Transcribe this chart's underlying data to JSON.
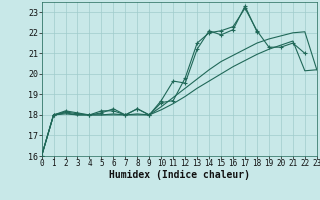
{
  "xlabel": "Humidex (Indice chaleur)",
  "background_color": "#c8e8e8",
  "grid_color": "#a0cccc",
  "line_color": "#206858",
  "xlim": [
    0,
    23
  ],
  "ylim": [
    16,
    23.5
  ],
  "yticks": [
    16,
    17,
    18,
    19,
    20,
    21,
    22,
    23
  ],
  "xticks": [
    0,
    1,
    2,
    3,
    4,
    5,
    6,
    7,
    8,
    9,
    10,
    11,
    12,
    13,
    14,
    15,
    16,
    17,
    18,
    19,
    20,
    21,
    22,
    23
  ],
  "series": [
    {
      "x": [
        0,
        1,
        2,
        3,
        4,
        5,
        6,
        7,
        8,
        9,
        10,
        11,
        12,
        13,
        14,
        15,
        16,
        17,
        18
      ],
      "y": [
        16.0,
        18.0,
        18.15,
        18.05,
        18.0,
        18.2,
        18.2,
        18.0,
        18.3,
        18.0,
        18.7,
        19.65,
        19.55,
        21.2,
        22.1,
        21.9,
        22.15,
        23.3,
        22.05
      ],
      "marker": true
    },
    {
      "x": [
        0,
        1,
        2,
        3,
        4,
        5,
        6,
        7,
        8,
        9,
        10,
        11,
        12,
        13,
        14,
        15,
        16,
        17,
        18,
        19,
        20,
        21,
        22
      ],
      "y": [
        16.0,
        18.0,
        18.2,
        18.1,
        18.0,
        18.1,
        18.3,
        18.0,
        18.3,
        18.0,
        18.6,
        18.7,
        19.8,
        21.5,
        22.0,
        22.1,
        22.3,
        23.2,
        22.1,
        21.3,
        21.3,
        21.5,
        21.0
      ],
      "marker": true
    },
    {
      "x": [
        0,
        1,
        2,
        3,
        4,
        5,
        6,
        7,
        8,
        9,
        10,
        11,
        12,
        13,
        14,
        15,
        16,
        17,
        18,
        19,
        20,
        21,
        22,
        23
      ],
      "y": [
        16.0,
        18.0,
        18.1,
        18.0,
        18.0,
        18.0,
        18.05,
        18.0,
        18.05,
        18.0,
        18.4,
        18.85,
        19.3,
        19.75,
        20.2,
        20.6,
        20.9,
        21.2,
        21.5,
        21.7,
        21.85,
        22.0,
        22.05,
        20.2
      ],
      "marker": false
    },
    {
      "x": [
        0,
        1,
        2,
        3,
        4,
        5,
        6,
        7,
        8,
        9,
        10,
        11,
        12,
        13,
        14,
        15,
        16,
        17,
        18,
        19,
        20,
        21,
        22,
        23
      ],
      "y": [
        16.0,
        18.0,
        18.05,
        18.0,
        18.0,
        18.0,
        18.0,
        18.0,
        18.0,
        18.0,
        18.25,
        18.55,
        18.9,
        19.3,
        19.65,
        20.0,
        20.35,
        20.65,
        20.95,
        21.2,
        21.4,
        21.6,
        20.15,
        20.2
      ],
      "marker": false
    }
  ]
}
